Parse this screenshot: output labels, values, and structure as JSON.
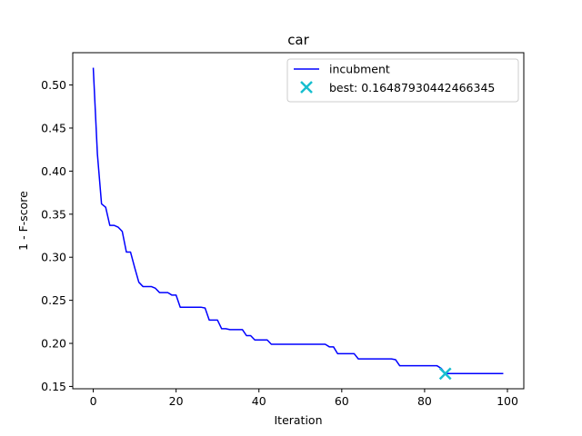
{
  "chart_data": {
    "type": "line",
    "title": "car",
    "xlabel": "Iteration",
    "ylabel": "1 - F-score",
    "xlim": [
      -4.95,
      103.95
    ],
    "ylim": [
      0.1473,
      0.5375
    ],
    "xticks": [
      0,
      20,
      40,
      60,
      80,
      100
    ],
    "yticks": [
      0.15,
      0.2,
      0.25,
      0.3,
      0.35,
      0.4,
      0.45,
      0.5
    ],
    "ytick_labels": [
      "0.15",
      "0.20",
      "0.25",
      "0.30",
      "0.35",
      "0.40",
      "0.45",
      "0.50"
    ],
    "grid": false,
    "legend_position": "top-right",
    "colors": {
      "line": "#0000ff",
      "best": "#17becf"
    },
    "series": [
      {
        "name": "incubment",
        "x": [
          0,
          1,
          2,
          3,
          4,
          5,
          6,
          7,
          8,
          9,
          10,
          11,
          12,
          13,
          14,
          15,
          16,
          17,
          18,
          19,
          20,
          21,
          22,
          23,
          24,
          25,
          26,
          27,
          28,
          29,
          30,
          31,
          32,
          33,
          34,
          35,
          36,
          37,
          38,
          39,
          40,
          41,
          42,
          43,
          44,
          45,
          46,
          47,
          48,
          49,
          50,
          51,
          52,
          53,
          54,
          55,
          56,
          57,
          58,
          59,
          60,
          61,
          62,
          63,
          64,
          65,
          66,
          67,
          68,
          69,
          70,
          71,
          72,
          73,
          74,
          75,
          76,
          77,
          78,
          79,
          80,
          81,
          82,
          83,
          84,
          85,
          86,
          87,
          88,
          89,
          90,
          91,
          92,
          93,
          94,
          95,
          96,
          97,
          98,
          99
        ],
        "y": [
          0.52,
          0.42,
          0.362,
          0.358,
          0.337,
          0.337,
          0.335,
          0.33,
          0.306,
          0.306,
          0.288,
          0.271,
          0.266,
          0.266,
          0.266,
          0.264,
          0.259,
          0.259,
          0.259,
          0.256,
          0.256,
          0.242,
          0.242,
          0.242,
          0.242,
          0.242,
          0.242,
          0.241,
          0.227,
          0.227,
          0.227,
          0.217,
          0.217,
          0.216,
          0.216,
          0.216,
          0.216,
          0.209,
          0.209,
          0.204,
          0.204,
          0.204,
          0.204,
          0.199,
          0.199,
          0.199,
          0.199,
          0.199,
          0.199,
          0.199,
          0.199,
          0.199,
          0.199,
          0.199,
          0.199,
          0.199,
          0.199,
          0.196,
          0.196,
          0.188,
          0.188,
          0.188,
          0.188,
          0.188,
          0.182,
          0.182,
          0.182,
          0.182,
          0.182,
          0.182,
          0.182,
          0.182,
          0.182,
          0.181,
          0.174,
          0.174,
          0.174,
          0.174,
          0.174,
          0.174,
          0.174,
          0.174,
          0.174,
          0.174,
          0.171,
          0.165,
          0.165,
          0.165,
          0.165,
          0.165,
          0.165,
          0.165,
          0.165,
          0.165,
          0.165,
          0.165,
          0.165,
          0.165,
          0.165,
          0.165
        ]
      }
    ],
    "best_point": {
      "name": "best: 0.16487930442466345",
      "x": 85,
      "y": 0.16487930442466345
    }
  }
}
